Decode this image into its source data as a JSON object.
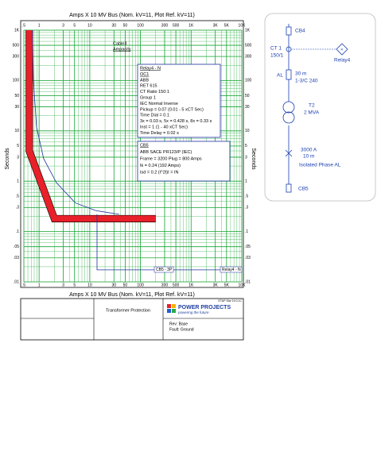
{
  "chart_data": {
    "type": "line",
    "top_axis_label": "Amps  X  10    MV Bus (Nom. kV=11, Plot Ref. kV=11)",
    "xlabel": "Amps  X  10    MV Bus (Nom. kV=11, Plot Ref. kV=11)",
    "ylabel": "Seconds",
    "xscale": "log",
    "yscale": "log",
    "xlim": [
      0.5,
      10000
    ],
    "ylim": [
      0.01,
      1000
    ],
    "xticks": [
      {
        "value": 0.5,
        "label": ".5"
      },
      1,
      3,
      5,
      10,
      30,
      50,
      100,
      300,
      500,
      {
        "value": 1000,
        "label": "1K"
      },
      {
        "value": 3000,
        "label": "3K"
      },
      {
        "value": 5000,
        "label": "5K"
      },
      {
        "value": 10000,
        "label": "10K"
      }
    ],
    "yticks": [
      {
        "value": 0.01,
        "label": ".01"
      },
      {
        "value": 0.03,
        "label": ".03"
      },
      {
        "value": 0.05,
        "label": ".05"
      },
      {
        "value": 0.1,
        "label": ".1"
      },
      {
        "value": 0.3,
        "label": ".3"
      },
      {
        "value": 0.5,
        "label": ".5"
      },
      1,
      3,
      5,
      10,
      30,
      50,
      100,
      300,
      500,
      {
        "value": 1000,
        "label": "1K"
      }
    ],
    "grid": true,
    "grid_color": "#1fa83a",
    "series": [
      {
        "color": "#e8202a",
        "width": 8,
        "x": [
          0.64,
          0.64,
          2,
          200
        ],
        "y": [
          1000,
          4,
          0.18,
          0.18
        ]
      },
      {
        "color": "#1f2fa0",
        "width": 0.8,
        "x": [
          0.74,
          0.77,
          0.89,
          1.23,
          2.2,
          5.2,
          13.2,
          38
        ],
        "y": [
          1000,
          105,
          11.9,
          2.8,
          0.93,
          0.37,
          0.26,
          0.22
        ]
      },
      {
        "color": "#1f2fa0",
        "width": 0.8,
        "x": [
          13.9,
          13.9,
          10000
        ],
        "y": [
          0.22,
          0.0173,
          0.0173
        ]
      }
    ],
    "cable_label": [
      "Cable3",
      "Ampacity"
    ],
    "relay_box": [
      "Relay4 - N",
      "OC1",
      "ABB",
      "RET 615",
      "CT Ratio 150:1",
      "Group 1",
      "IEC Normal Inverse",
      "Pickup = 0.07 (0.01 - 5 xCT Sec)",
      "Time Dial = 0.1",
      "3x = 0.03 s, 5x = 0.428 s, 8x = 0.33 s",
      "Inst = 1 (1 - 40 xCT Sec)",
      "Time Delay = 0.02 s"
    ],
    "cb_box": [
      "CB5",
      "ABB  SACE PR123/P (IEC)",
      "Frame = 3200  Plug = 800 Amps",
      "Ik = 0.24 (192 Amps)",
      "Isd = 0.2 (I^2t)I = IN"
    ],
    "curve_tags": [
      "CB5 - 3P",
      "Relay4 - N"
    ]
  },
  "title_block": {
    "project": "Transformer Protection",
    "logo": "POWER PROJECTS",
    "tagline": "powering the future",
    "rev": "Rev:  Base",
    "fault": "Fault:  Ground",
    "software": "ETAP Star 19.0.1C"
  },
  "diagram": {
    "cb4": "CB4",
    "ct": "CT 1",
    "ct_ratio": "150/1",
    "relay": "Relay4",
    "cable_type": "AL",
    "cable_length": "30 m",
    "cable_size": "1-3/C 240",
    "transformer": "T2",
    "transformer_rating": "2 MVA",
    "bus_rating": "3000 A",
    "bus_length": "10 m",
    "bus_type": "Isolated Phase AL",
    "cb5": "CB5"
  }
}
